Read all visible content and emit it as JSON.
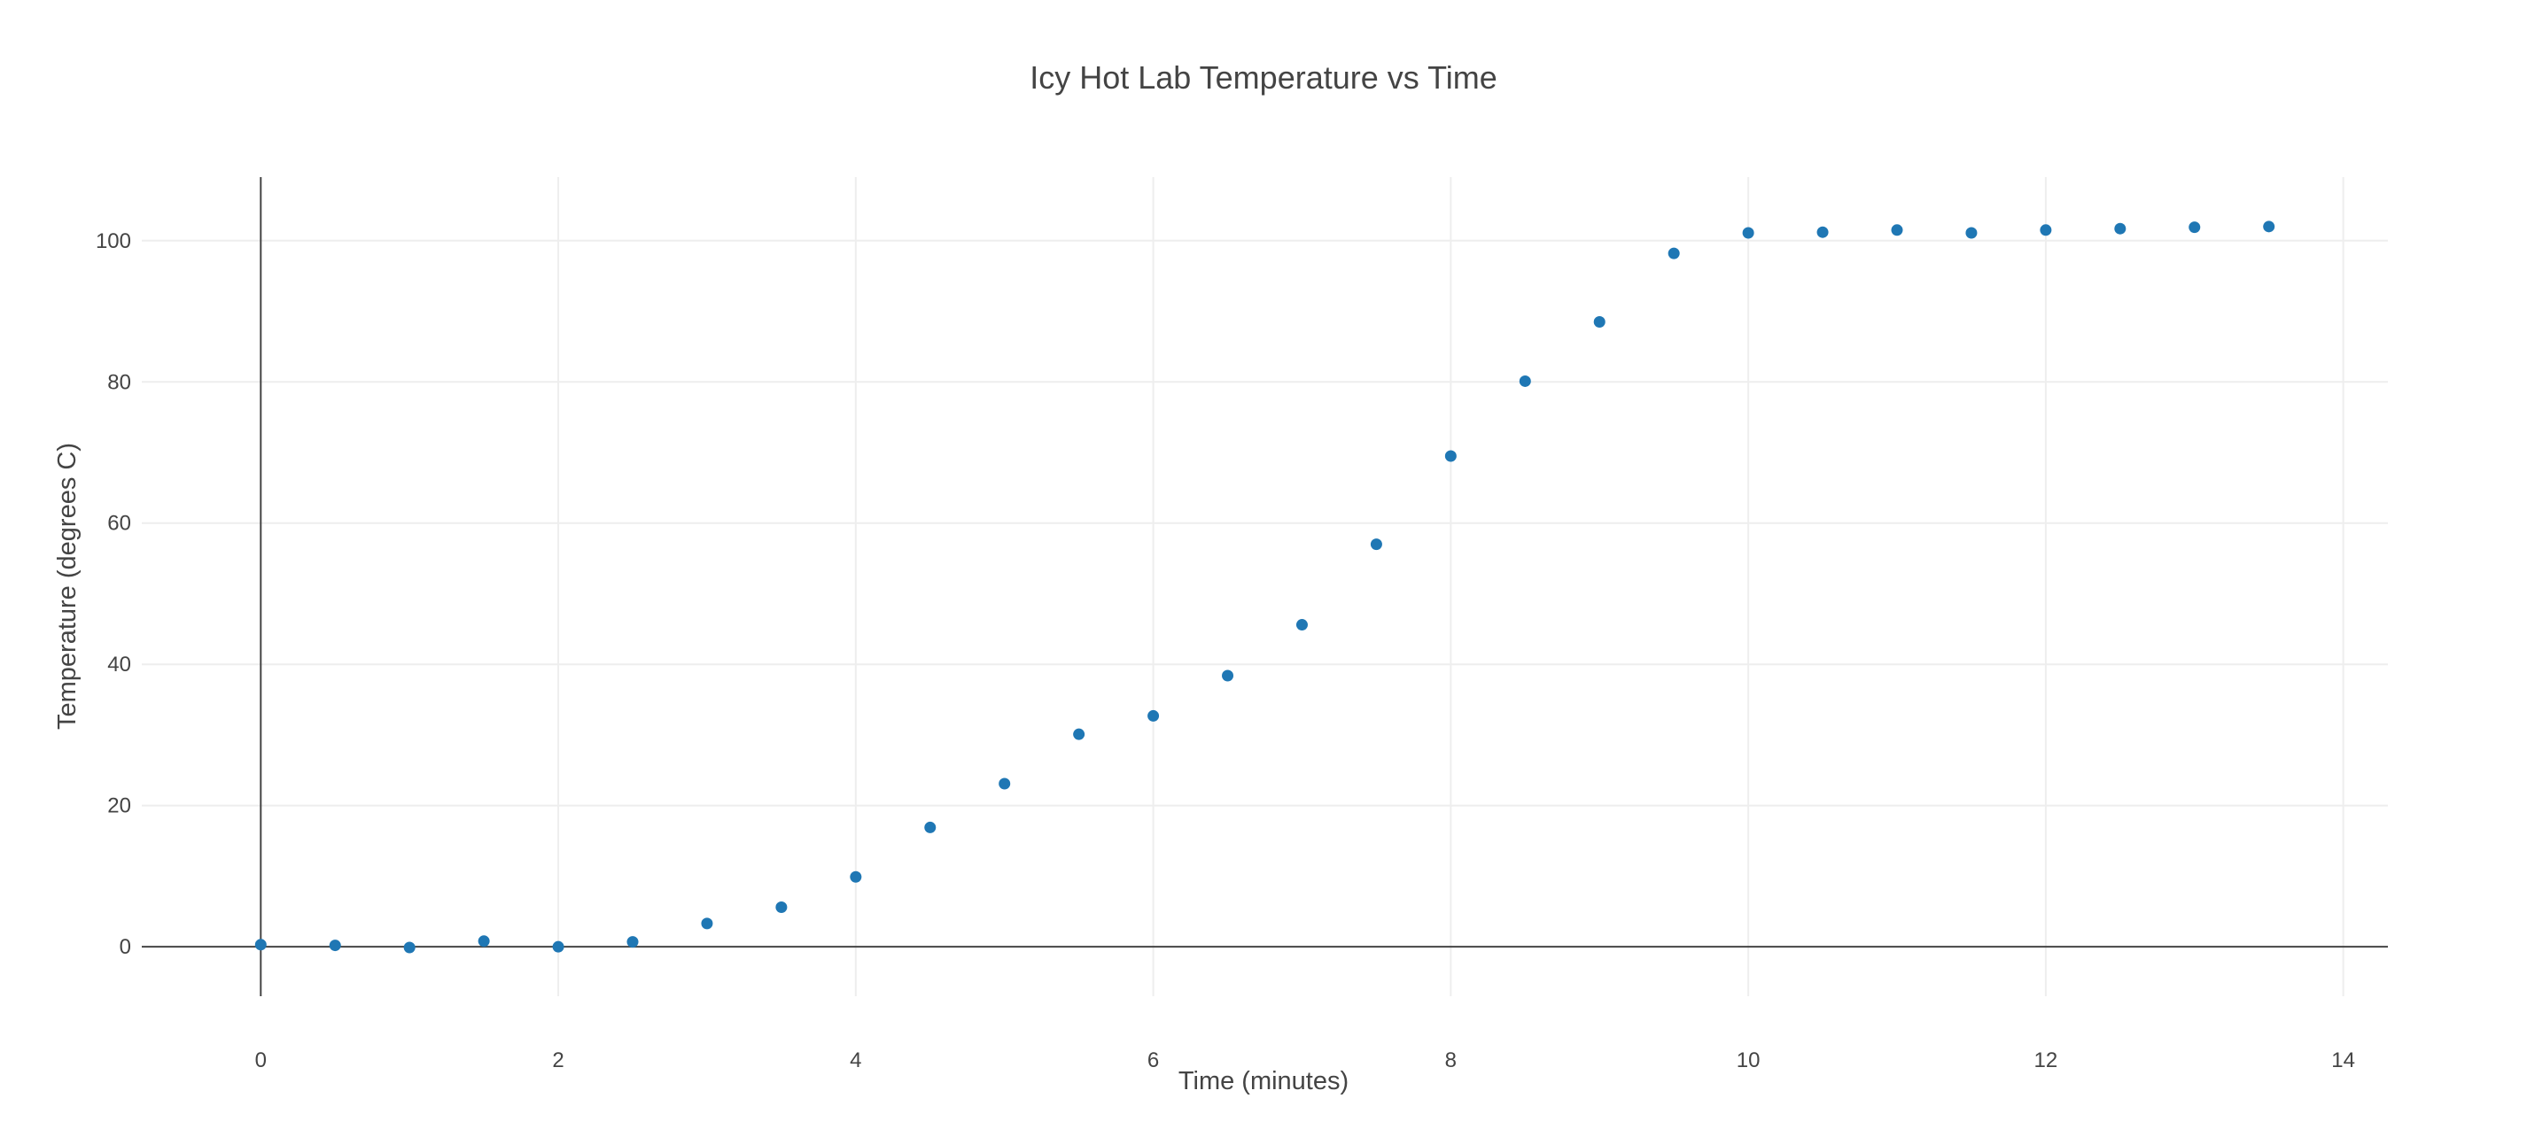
{
  "chart_data": {
    "type": "scatter",
    "title": "Icy Hot Lab Temperature vs Time",
    "xlabel": "Time (minutes)",
    "ylabel": "Temperature (degrees C)",
    "xlim": [
      -0.8,
      14.3
    ],
    "ylim": [
      -7,
      109
    ],
    "x_ticks": [
      0,
      2,
      4,
      6,
      8,
      10,
      12,
      14
    ],
    "y_ticks": [
      0,
      20,
      40,
      60,
      80,
      100
    ],
    "x_tick_labels": [
      "0",
      "2",
      "4",
      "6",
      "8",
      "10",
      "12",
      "14"
    ],
    "y_tick_labels": [
      "0",
      "20",
      "40",
      "60",
      "80",
      "100"
    ],
    "grid": true,
    "legend": "none",
    "marker_color": "#1f77b4",
    "series": [
      {
        "x": [
          0,
          0.5,
          1,
          1.5,
          2,
          2.5,
          3,
          3.5,
          4,
          4.5,
          5,
          5.5,
          6,
          6.5,
          7,
          7.5,
          8,
          8.5,
          9,
          9.5,
          10,
          10.5,
          11,
          11.5,
          12,
          12.5,
          13,
          13.5
        ],
        "y": [
          0.3,
          0.2,
          -0.1,
          0.8,
          0,
          0.7,
          3.3,
          5.6,
          9.9,
          16.9,
          23.1,
          30.1,
          32.7,
          38.4,
          45.6,
          57,
          69.5,
          80.1,
          88.5,
          98.2,
          101.1,
          101.2,
          101.5,
          101.1,
          101.5,
          101.7,
          101.9,
          102
        ]
      }
    ]
  }
}
